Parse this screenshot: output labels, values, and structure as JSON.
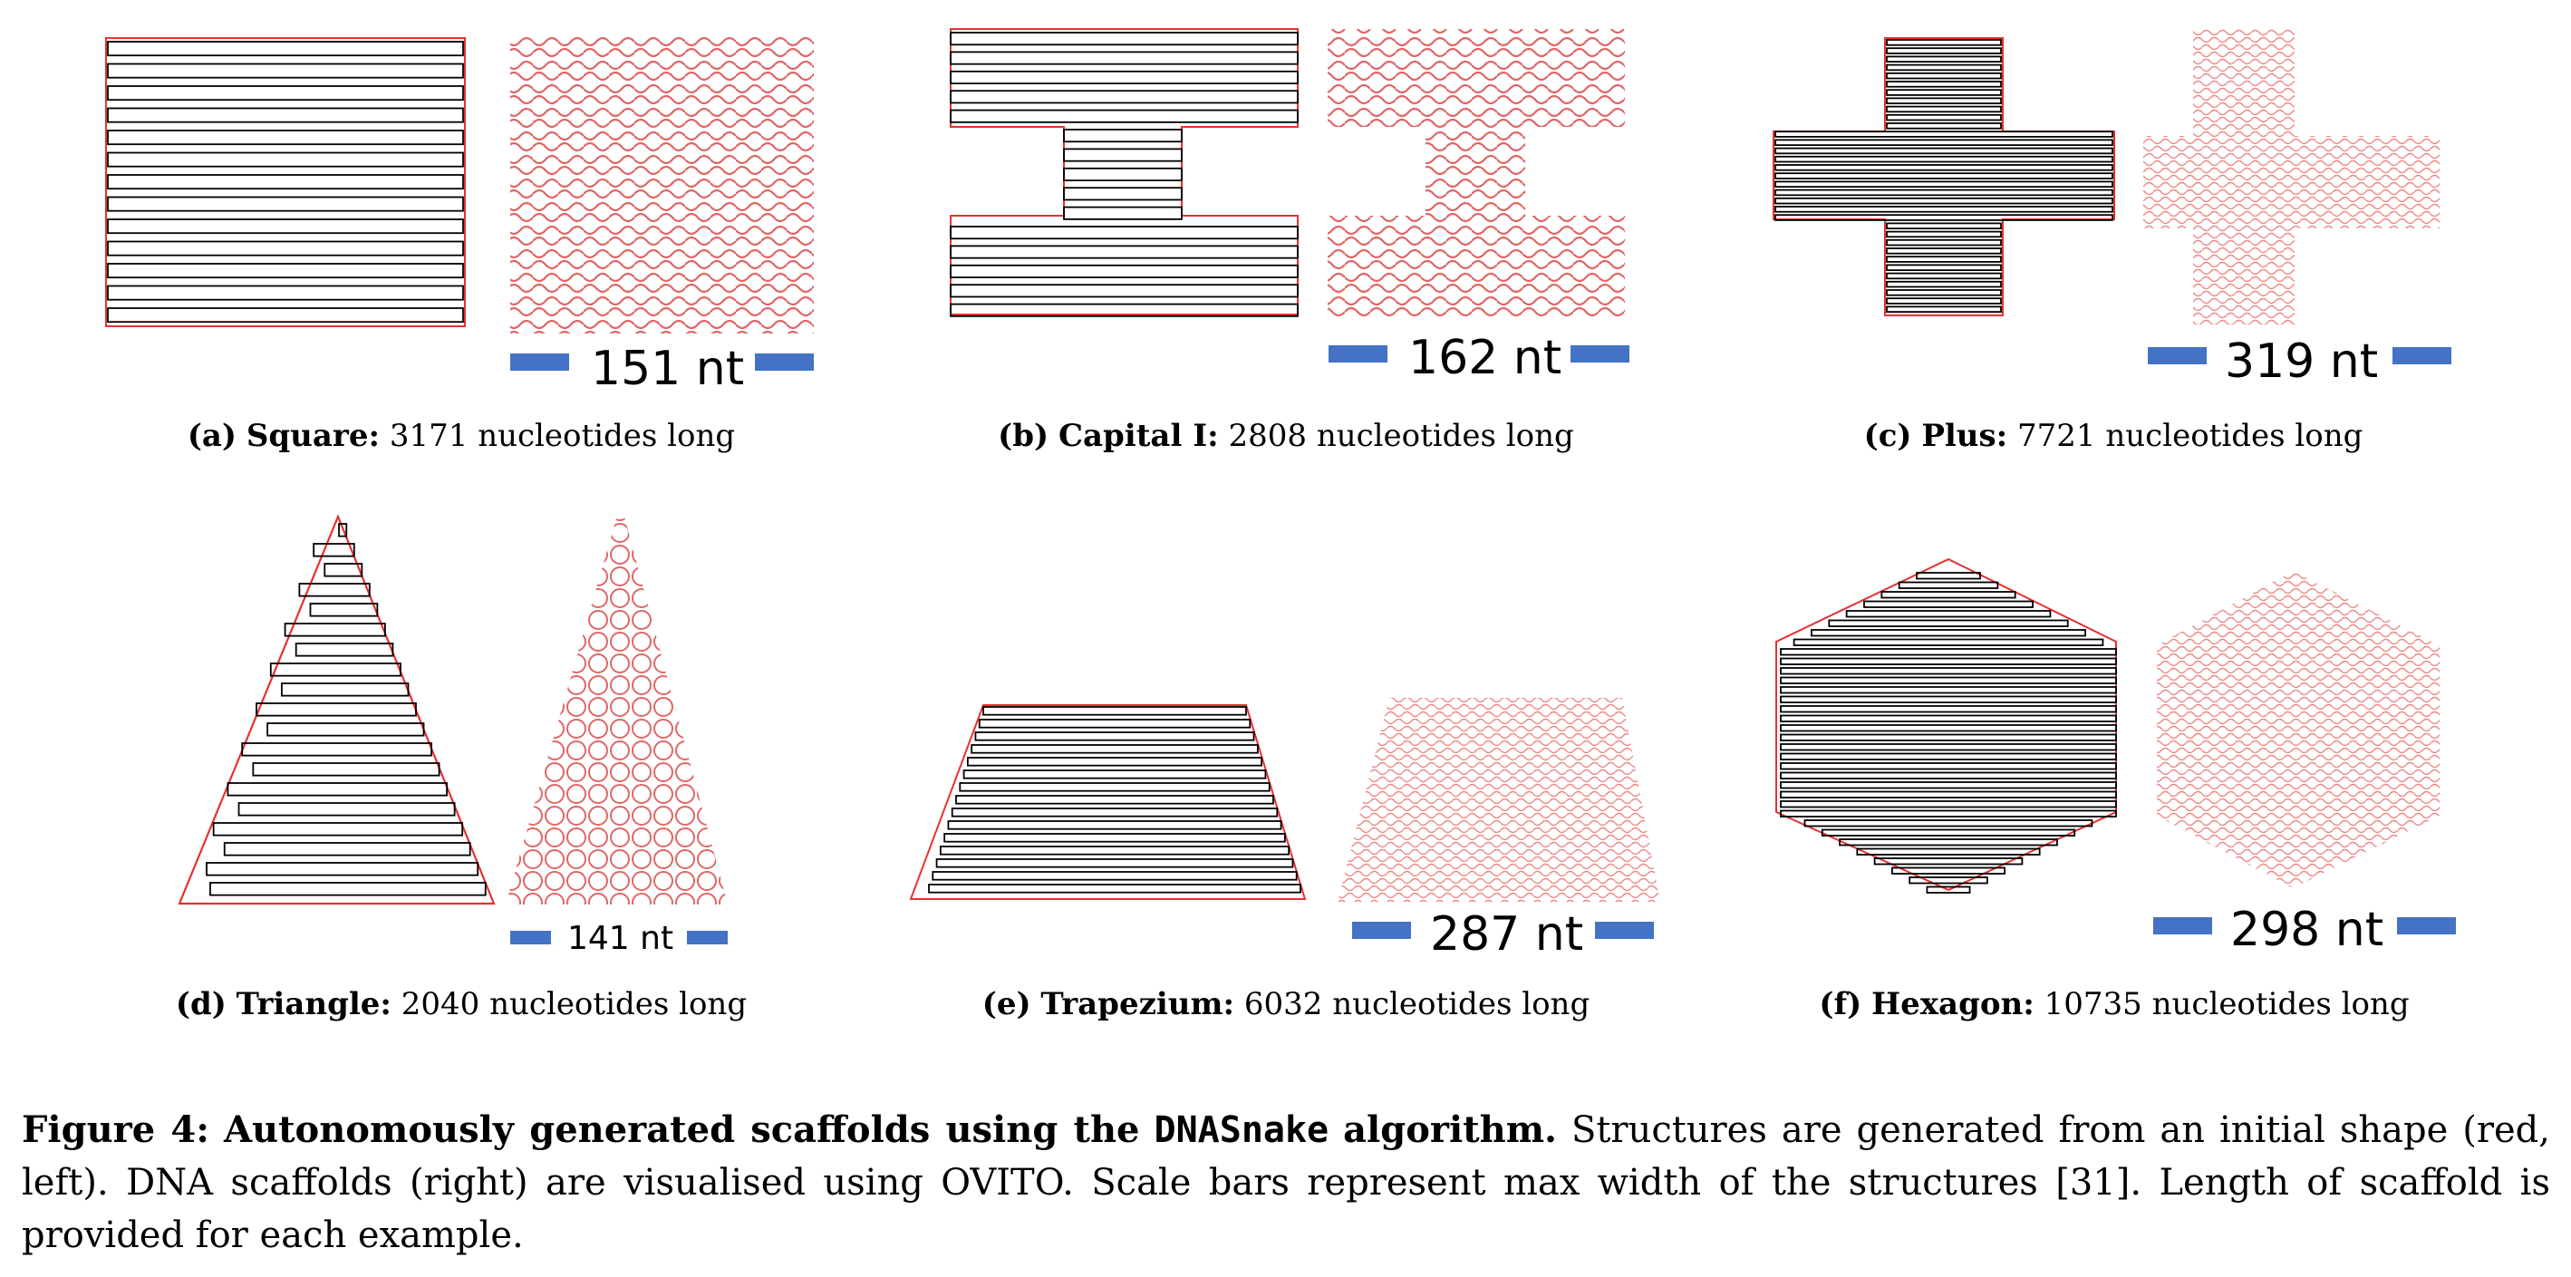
{
  "panels": [
    {
      "id": "a",
      "label": "(a)",
      "name": "Square:",
      "length": "3171",
      "suffix": "nucleotides long",
      "scale": "151 nt"
    },
    {
      "id": "b",
      "label": "(b)",
      "name": "Capital I:",
      "length": "2808",
      "suffix": "nucleotides long",
      "scale": "162 nt"
    },
    {
      "id": "c",
      "label": "(c)",
      "name": "Plus:",
      "length": "7721",
      "suffix": "nucleotides long",
      "scale": "319 nt"
    },
    {
      "id": "d",
      "label": "(d)",
      "name": "Triangle:",
      "length": "2040",
      "suffix": "nucleotides long",
      "scale": "141 nt"
    },
    {
      "id": "e",
      "label": "(e)",
      "name": "Trapezium:",
      "length": "6032",
      "suffix": "nucleotides long",
      "scale": "287 nt"
    },
    {
      "id": "f",
      "label": "(f)",
      "name": "Hexagon:",
      "length": "10735",
      "suffix": "nucleotides long",
      "scale": "298 nt"
    }
  ],
  "figure_caption": {
    "label": "Figure 4:",
    "title_pre": "Autonomously generated scaffolds using the",
    "algorithm": "DNASnake",
    "title_post": "algorithm.",
    "body": "Structures are generated from an initial shape (red, left). DNA scaffolds (right) are visualised using OVITO. Scale bars represent max width of the structures [31]. Length of scaffold is provided for each example."
  },
  "colors": {
    "outline_red": "#e8302f",
    "scaffold_red": "#e06666",
    "path_black": "#000000",
    "scale_blue": "#4472c4"
  }
}
